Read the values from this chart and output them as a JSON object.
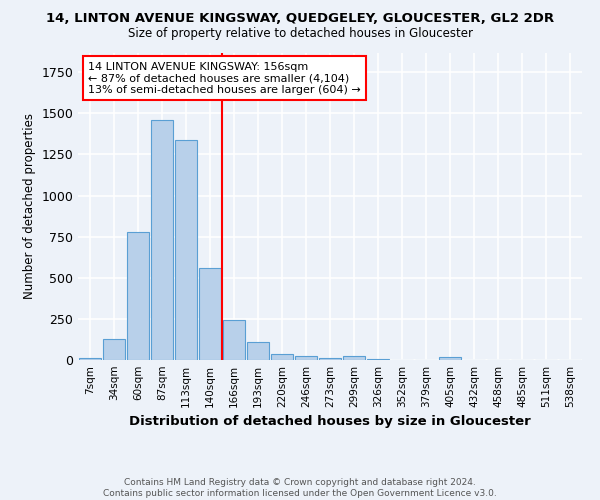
{
  "title": "14, LINTON AVENUE KINGSWAY, QUEDGELEY, GLOUCESTER, GL2 2DR",
  "subtitle": "Size of property relative to detached houses in Gloucester",
  "xlabel": "Distribution of detached houses by size in Gloucester",
  "ylabel": "Number of detached properties",
  "bar_labels": [
    "7sqm",
    "34sqm",
    "60sqm",
    "87sqm",
    "113sqm",
    "140sqm",
    "166sqm",
    "193sqm",
    "220sqm",
    "246sqm",
    "273sqm",
    "299sqm",
    "326sqm",
    "352sqm",
    "379sqm",
    "405sqm",
    "432sqm",
    "458sqm",
    "485sqm",
    "511sqm",
    "538sqm"
  ],
  "bar_values": [
    10,
    130,
    780,
    1460,
    1340,
    560,
    245,
    110,
    35,
    25,
    15,
    25,
    5,
    0,
    0,
    18,
    0,
    0,
    0,
    0,
    0
  ],
  "bar_color": "#b8d0ea",
  "bar_edge_color": "#5a9fd4",
  "vline_color": "red",
  "annotation_text": "14 LINTON AVENUE KINGSWAY: 156sqm\n← 87% of detached houses are smaller (4,104)\n13% of semi-detached houses are larger (604) →",
  "footer": "Contains HM Land Registry data © Crown copyright and database right 2024.\nContains public sector information licensed under the Open Government Licence v3.0.",
  "ylim": [
    0,
    1870
  ],
  "bg_color": "#edf2f9",
  "grid_color": "white"
}
